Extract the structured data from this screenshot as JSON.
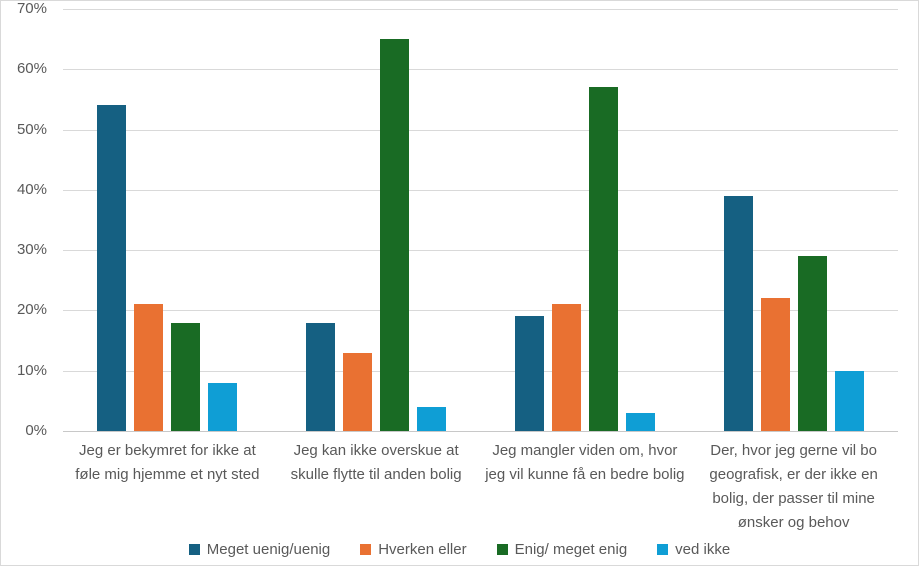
{
  "chart_data": {
    "type": "bar",
    "title": "",
    "xlabel": "",
    "ylabel": "",
    "ylim": [
      0,
      70
    ],
    "ytick_step": 10,
    "yticks": [
      "0%",
      "10%",
      "20%",
      "30%",
      "40%",
      "50%",
      "60%",
      "70%"
    ],
    "grid": true,
    "legend_position": "bottom",
    "categories": [
      "Jeg er bekymret for ikke at føle mig hjemme et nyt sted",
      "Jeg kan ikke overskue at skulle flytte til anden bolig",
      "Jeg mangler viden om, hvor jeg vil kunne få en bedre bolig",
      "Der, hvor jeg gerne vil bo geografisk, er der ikke en bolig, der passer til mine ønsker og behov"
    ],
    "series": [
      {
        "name": "Meget uenig/uenig",
        "color": "#156082",
        "values": [
          54,
          18,
          19,
          39
        ]
      },
      {
        "name": "Hverken eller",
        "color": "#E97132",
        "values": [
          21,
          13,
          21,
          22
        ]
      },
      {
        "name": "Enig/ meget enig",
        "color": "#196B24",
        "values": [
          18,
          65,
          57,
          29
        ]
      },
      {
        "name": "ved ikke",
        "color": "#0F9ED5",
        "values": [
          8,
          4,
          3,
          10
        ]
      }
    ]
  },
  "style": {
    "gridline_color": "#D9D9D9",
    "axis_line_color": "#C8C8C8",
    "text_color": "#595959",
    "background_color": "#FFFFFF"
  }
}
